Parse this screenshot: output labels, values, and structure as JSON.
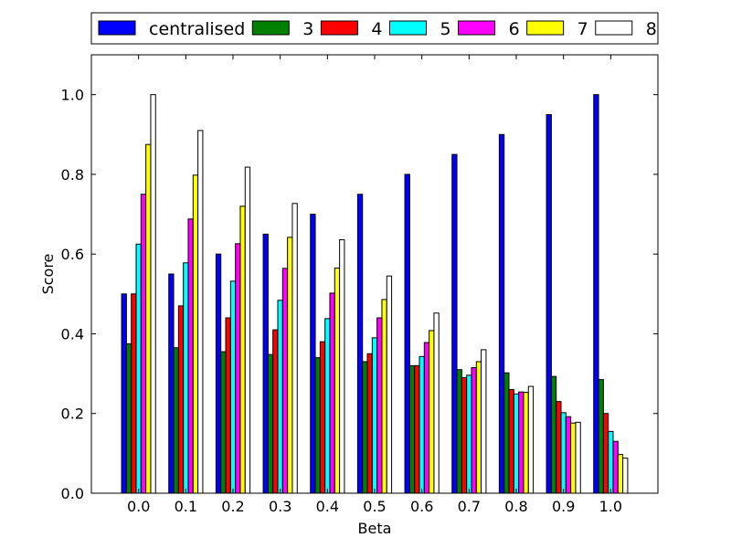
{
  "chart_data": {
    "type": "bar",
    "xlabel": "Beta",
    "ylabel": "Score",
    "ylim": [
      0.0,
      1.1
    ],
    "yticks": [
      "0.0",
      "0.2",
      "0.4",
      "0.6",
      "0.8",
      "1.0"
    ],
    "categories": [
      "0.0",
      "0.1",
      "0.2",
      "0.3",
      "0.4",
      "0.5",
      "0.6",
      "0.7",
      "0.8",
      "0.9",
      "1.0"
    ],
    "legend_position": "top (above plot)",
    "grid": false,
    "series": [
      {
        "name": "centralised",
        "color": "#0000ff",
        "values": [
          0.5,
          0.55,
          0.6,
          0.65,
          0.7,
          0.75,
          0.8,
          0.85,
          0.9,
          0.95,
          1.0
        ]
      },
      {
        "name": "3",
        "color": "#008000",
        "values": [
          0.375,
          0.365,
          0.355,
          0.348,
          0.34,
          0.33,
          0.32,
          0.31,
          0.302,
          0.293,
          0.285
        ]
      },
      {
        "name": "4",
        "color": "#ff0000",
        "values": [
          0.5,
          0.47,
          0.44,
          0.41,
          0.38,
          0.35,
          0.32,
          0.29,
          0.26,
          0.23,
          0.2
        ]
      },
      {
        "name": "5",
        "color": "#00ffff",
        "values": [
          0.625,
          0.578,
          0.532,
          0.484,
          0.438,
          0.39,
          0.343,
          0.296,
          0.249,
          0.202,
          0.155
        ]
      },
      {
        "name": "6",
        "color": "#ff00ff",
        "values": [
          0.75,
          0.688,
          0.626,
          0.564,
          0.502,
          0.44,
          0.378,
          0.315,
          0.254,
          0.192,
          0.13
        ]
      },
      {
        "name": "7",
        "color": "#ffff00",
        "values": [
          0.875,
          0.798,
          0.72,
          0.642,
          0.565,
          0.486,
          0.408,
          0.33,
          0.253,
          0.176,
          0.097
        ]
      },
      {
        "name": "8",
        "color": "#ffffff",
        "values": [
          1.0,
          0.91,
          0.818,
          0.727,
          0.636,
          0.545,
          0.452,
          0.36,
          0.268,
          0.178,
          0.088
        ]
      }
    ]
  }
}
